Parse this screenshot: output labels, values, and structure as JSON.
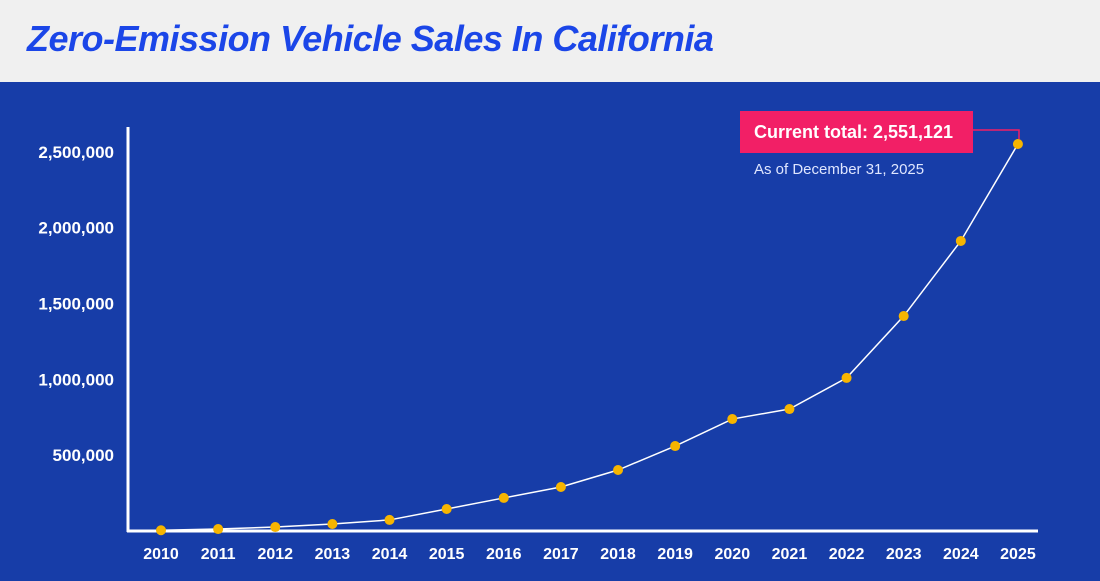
{
  "header": {
    "title": "Zero-Emission Vehicle Sales In California"
  },
  "colors": {
    "background": "#173da8",
    "header_bg": "#f0f0f0",
    "title": "#1b46e8",
    "dot": "#f7b500",
    "line": "#ffffff",
    "callout": "#f21f66"
  },
  "chart_data": {
    "type": "line",
    "title": "Zero-Emission Vehicle Sales In California",
    "xlabel": "",
    "ylabel": "",
    "categories": [
      "2010",
      "2011",
      "2012",
      "2013",
      "2014",
      "2015",
      "2016",
      "2017",
      "2018",
      "2019",
      "2020",
      "2021",
      "2022",
      "2023",
      "2024",
      "2025"
    ],
    "values": [
      5000,
      13000,
      26000,
      46000,
      73000,
      145000,
      218000,
      290000,
      402000,
      560000,
      738000,
      804000,
      1009000,
      1417000,
      1912000,
      2551121
    ],
    "ylim": [
      0,
      2600000
    ],
    "yticks": [
      500000,
      1000000,
      1500000,
      2000000,
      2500000
    ],
    "ytick_labels": [
      "500,000",
      "1,000,000",
      "1,500,000",
      "2,000,000",
      "2,500,000"
    ],
    "grid": false,
    "annotation": {
      "label": "Current total: 2,551,121",
      "sublabel": "As of December 31, 2025",
      "target": "2025"
    }
  }
}
